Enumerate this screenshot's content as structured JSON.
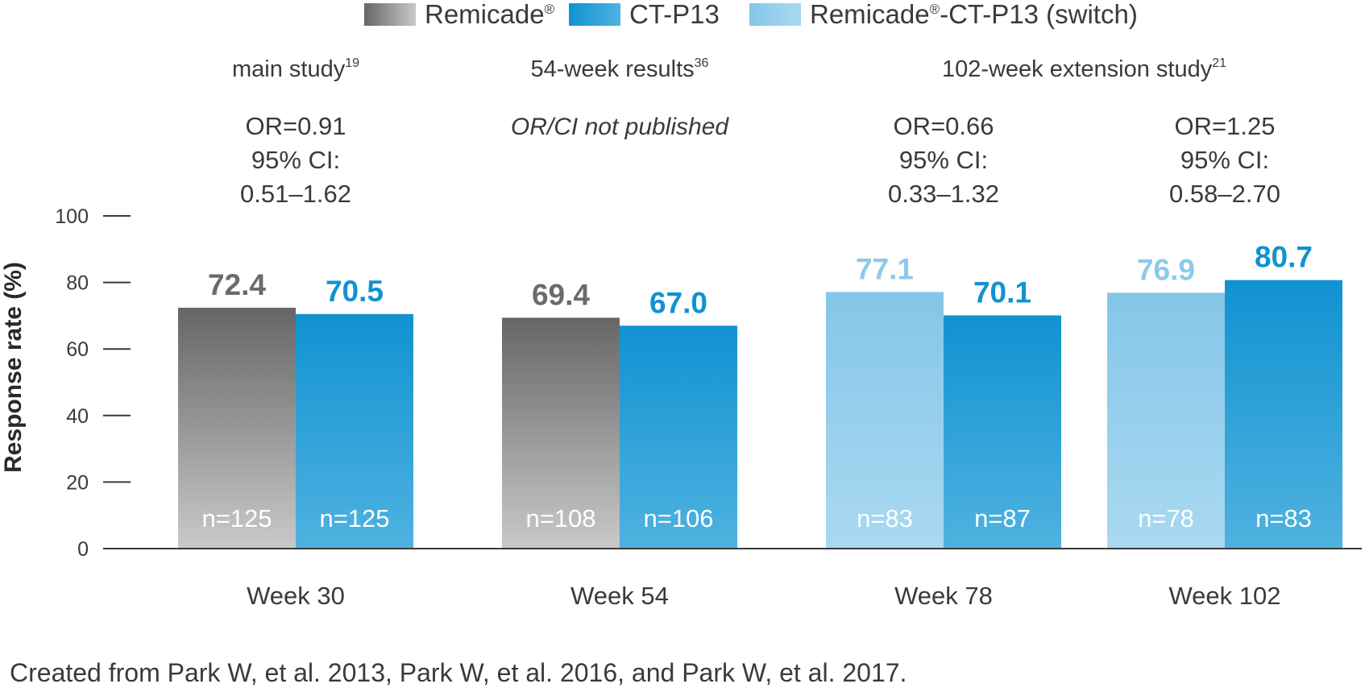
{
  "chart_data": {
    "type": "bar",
    "ylabel": "Response rate (%)",
    "ylim": [
      0,
      100
    ],
    "yticks": [
      "0",
      "20",
      "40",
      "60",
      "80",
      "100"
    ],
    "categories": [
      "Week 30",
      "Week 54",
      "Week 78",
      "Week 102"
    ],
    "legend": [
      {
        "name": "Remicade",
        "sup": "®",
        "key": "remicade"
      },
      {
        "name": "CT-P13",
        "sup": "",
        "key": "ctp13"
      },
      {
        "name": "Remicade",
        "sup": "®",
        "suffix": "-CT-P13 (switch)",
        "key": "switch"
      }
    ],
    "studies": [
      {
        "label": "main study",
        "sup": "19",
        "group": 0
      },
      {
        "label": "54-week results",
        "sup": "36",
        "group": 1
      },
      {
        "label": "102-week extension study",
        "sup": "21",
        "group": 2.5
      }
    ],
    "stats": [
      {
        "group": 0,
        "lines": [
          "OR=0.91",
          "95% CI:",
          "0.51–1.62"
        ],
        "italic": false
      },
      {
        "group": 1,
        "lines": [
          "OR/CI not published"
        ],
        "italic": true
      },
      {
        "group": 2,
        "lines": [
          "OR=0.66",
          "95% CI:",
          "0.33–1.32"
        ],
        "italic": false
      },
      {
        "group": 3,
        "lines": [
          "OR=1.25",
          "95% CI:",
          "0.58–2.70"
        ],
        "italic": false
      }
    ],
    "groups": [
      {
        "category": "Week 30",
        "bars": [
          {
            "series": "remicade",
            "value": 72.4,
            "label": "72.4",
            "n": "n=125"
          },
          {
            "series": "ctp13",
            "value": 70.5,
            "label": "70.5",
            "n": "n=125"
          }
        ]
      },
      {
        "category": "Week 54",
        "bars": [
          {
            "series": "remicade",
            "value": 69.4,
            "label": "69.4",
            "n": "n=108"
          },
          {
            "series": "ctp13",
            "value": 67.0,
            "label": "67.0",
            "n": "n=106"
          }
        ]
      },
      {
        "category": "Week 78",
        "bars": [
          {
            "series": "switch",
            "value": 77.1,
            "label": "77.1",
            "n": "n=83"
          },
          {
            "series": "ctp13",
            "value": 70.1,
            "label": "70.1",
            "n": "n=87"
          }
        ]
      },
      {
        "category": "Week 102",
        "bars": [
          {
            "series": "switch",
            "value": 76.9,
            "label": "76.9",
            "n": "n=78"
          },
          {
            "series": "ctp13",
            "value": 80.7,
            "label": "80.7",
            "n": "n=83"
          }
        ]
      }
    ],
    "colors": {
      "remicade_top": "#666666",
      "remicade_bottom": "#c9c9c9",
      "ctp13_top": "#1192d1",
      "ctp13_bottom": "#4fb2e0",
      "switch_top": "#84c6e8",
      "switch_bottom": "#aad9f1",
      "remicade_label": "#6b6b6b",
      "ctp13_label": "#1192d1",
      "switch_label": "#8ccaea",
      "axis": "#3a3a3a"
    },
    "footnote": "Created from  Park W, et al. 2013, Park W, et al. 2016, and Park W, et al. 2017."
  }
}
